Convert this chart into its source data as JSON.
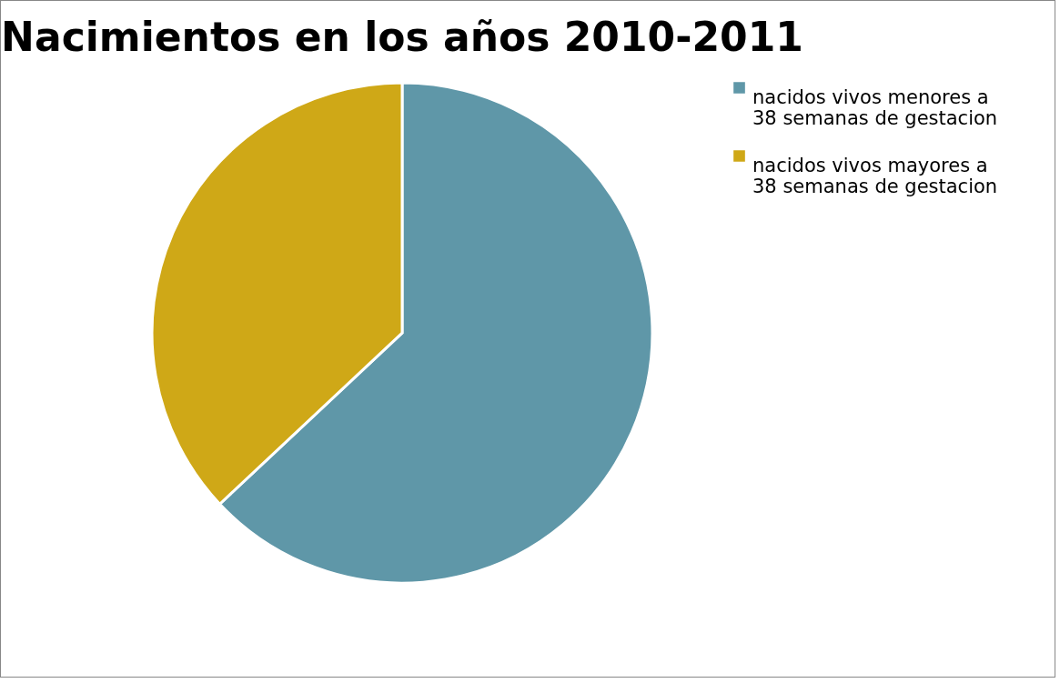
{
  "chart_data": {
    "type": "pie",
    "title": "Nacimientos en los años 2010-2011",
    "categories": [
      "nacidos vivos menores a 38 semanas de gestacion",
      "nacidos vivos mayores a 38 semanas de gestacion"
    ],
    "values": [
      63,
      37
    ],
    "colors": [
      "#5f97a8",
      "#cfa817"
    ],
    "legend": "right"
  }
}
